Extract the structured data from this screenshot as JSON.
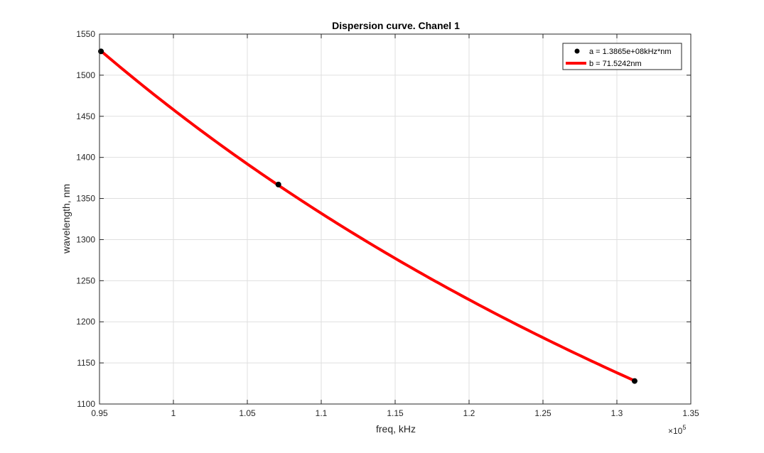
{
  "chart_data": {
    "type": "line",
    "title": "Dispersion curve. Chanel 1",
    "xlabel": "freq, kHz",
    "ylabel": "wavelength, nm",
    "x_exponent": "×10",
    "x_exponent_power": "5",
    "xlim": [
      0.95,
      1.35
    ],
    "ylim": [
      1100,
      1550
    ],
    "x_ticks": [
      0.95,
      1.0,
      1.05,
      1.1,
      1.15,
      1.2,
      1.25,
      1.3,
      1.35
    ],
    "x_tick_labels": [
      "0.95",
      "1",
      "1.05",
      "1.1",
      "1.15",
      "1.2",
      "1.25",
      "1.3",
      "1.35"
    ],
    "y_ticks": [
      1100,
      1150,
      1200,
      1250,
      1300,
      1350,
      1400,
      1450,
      1500,
      1550
    ],
    "y_tick_labels": [
      "1100",
      "1150",
      "1200",
      "1250",
      "1300",
      "1350",
      "1400",
      "1450",
      "1500",
      "1550"
    ],
    "grid": true,
    "legend_position": "top-right",
    "series": [
      {
        "name": "a = 1.3865e+08kHz*nm",
        "kind": "scatter",
        "color": "#000000",
        "x": [
          0.951,
          1.071,
          1.312
        ],
        "y": [
          1529,
          1367,
          1128
        ]
      },
      {
        "name": "b = 71.5242nm",
        "kind": "line",
        "color": "#ff0000",
        "model": "wavelength = a / freq + b",
        "a": 138650000,
        "b": 71.5242,
        "x_range": [
          0.951,
          1.312
        ]
      }
    ]
  }
}
